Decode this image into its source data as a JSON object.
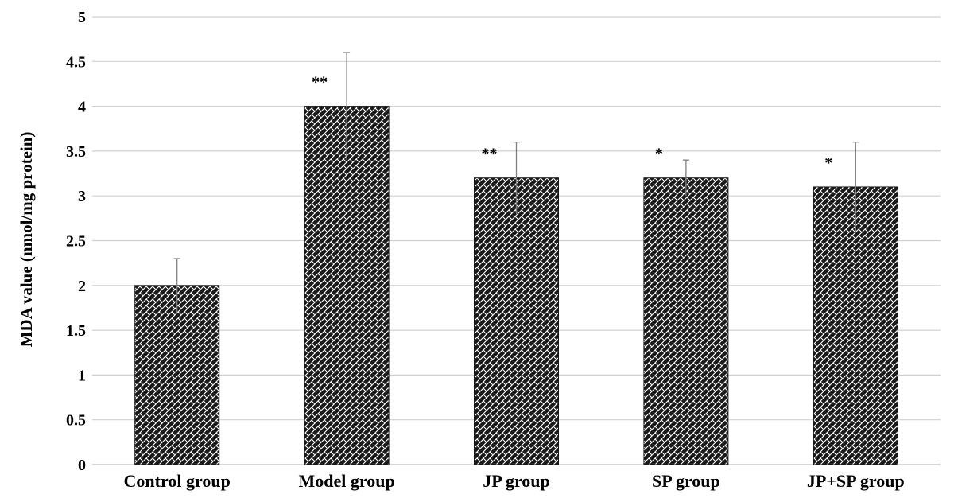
{
  "chart_data": {
    "type": "bar",
    "title": "",
    "xlabel": "",
    "ylabel": "MDA value (nmol/mg protein)",
    "ylim": [
      0,
      5
    ],
    "yticks": [
      0,
      0.5,
      1,
      1.5,
      2,
      2.5,
      3,
      3.5,
      4,
      4.5,
      5
    ],
    "grid": true,
    "legend": "none",
    "categories": [
      "Control group",
      "Model group",
      "JP group",
      "SP group",
      "JP+SP group"
    ],
    "values": [
      2.0,
      4.0,
      3.2,
      3.2,
      3.1
    ],
    "error_plus": [
      0.3,
      0.6,
      0.4,
      0.2,
      0.5
    ],
    "significance": [
      "",
      "**",
      "**",
      "*",
      "*"
    ],
    "bar_color": "#1a1a1a",
    "bar_pattern": "diagonal-brick"
  }
}
